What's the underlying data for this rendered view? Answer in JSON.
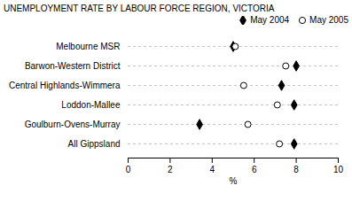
{
  "chart_data": {
    "type": "dot",
    "title": "UNEMPLOYMENT RATE BY LABOUR FORCE REGION, VICTORIA",
    "orientation": "horizontal",
    "categories": [
      "Melbourne MSR",
      "Barwon-Western District",
      "Central Highlands-Wimmera",
      "Loddon-Mallee",
      "Goulburn-Ovens-Murray",
      "All Gippsland"
    ],
    "series": [
      {
        "name": "May 2004",
        "color": "#000000",
        "marker": "diamond",
        "values": [
          5.0,
          8.0,
          7.3,
          7.9,
          3.4,
          7.9
        ]
      },
      {
        "name": "May 2005",
        "color": "#000000",
        "marker": "circle",
        "values": [
          5.1,
          7.5,
          5.5,
          7.1,
          5.7,
          7.2
        ]
      }
    ],
    "xlabel": "%",
    "xlim": [
      0,
      10
    ],
    "xticks": [
      0,
      2,
      4,
      6,
      8,
      10
    ],
    "grid": true,
    "legend": "upper right"
  }
}
